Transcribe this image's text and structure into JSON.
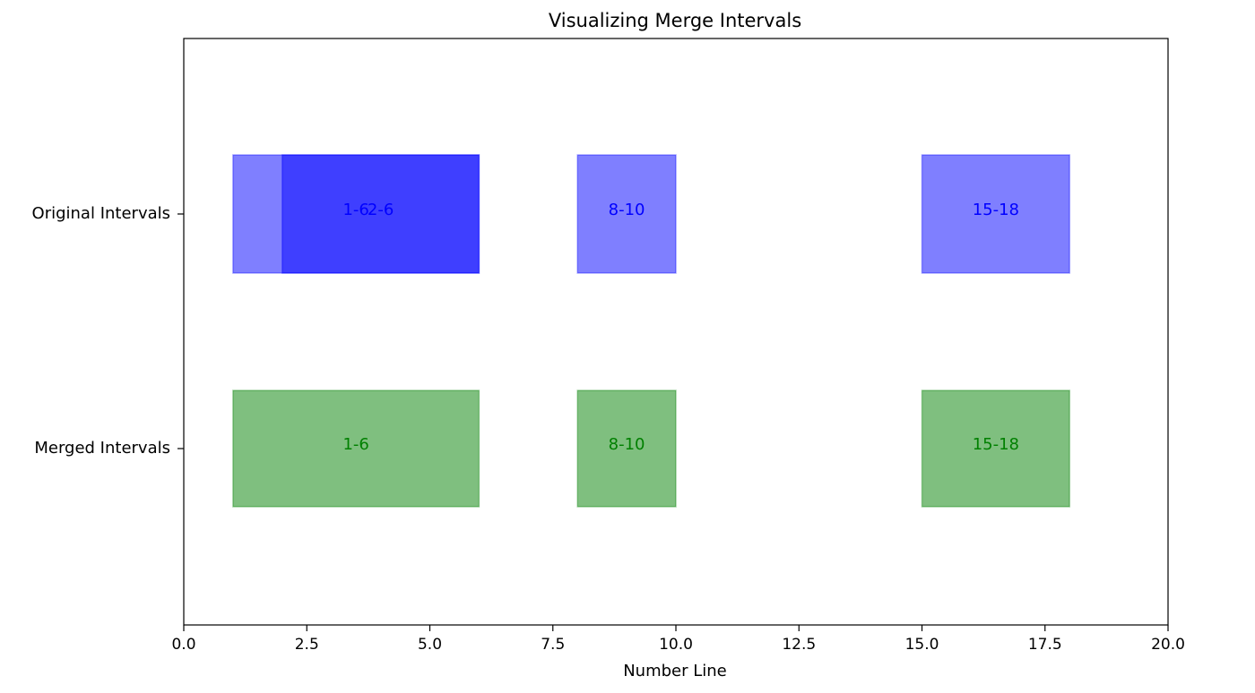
{
  "chart_data": {
    "type": "bar",
    "orientation": "horizontal",
    "title": "Visualizing Merge Intervals",
    "xlabel": "Number Line",
    "ylabel": "",
    "xlim": [
      0,
      20
    ],
    "xticks": [
      "0.0",
      "2.5",
      "5.0",
      "7.5",
      "10.0",
      "12.5",
      "15.0",
      "17.5",
      "20.0"
    ],
    "xtick_values": [
      0,
      2.5,
      5,
      7.5,
      10,
      12.5,
      15,
      17.5,
      20
    ],
    "categories": [
      "Original Intervals",
      "Merged Intervals"
    ],
    "grid": false,
    "series": [
      {
        "category": "Original Intervals",
        "color": "#0000ff",
        "alpha": 0.5,
        "intervals": [
          {
            "start": 1,
            "end": 6,
            "label": "1-6"
          },
          {
            "start": 2,
            "end": 6,
            "label": "2-6"
          },
          {
            "start": 8,
            "end": 10,
            "label": "8-10"
          },
          {
            "start": 15,
            "end": 18,
            "label": "15-18"
          }
        ]
      },
      {
        "category": "Merged Intervals",
        "color": "#008000",
        "alpha": 0.5,
        "intervals": [
          {
            "start": 1,
            "end": 6,
            "label": "1-6"
          },
          {
            "start": 8,
            "end": 10,
            "label": "8-10"
          },
          {
            "start": 15,
            "end": 18,
            "label": "15-18"
          }
        ]
      }
    ]
  }
}
